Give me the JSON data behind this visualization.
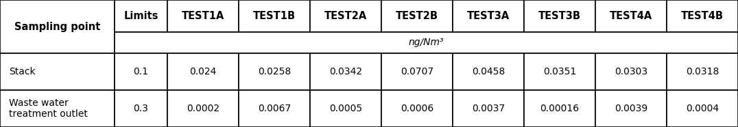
{
  "col_headers": [
    "Limits",
    "TEST1A",
    "TEST1B",
    "TEST2A",
    "TEST2B",
    "TEST3A",
    "TEST3B",
    "TEST4A",
    "TEST4B"
  ],
  "row_header_label": "Sampling point",
  "unit_label": "ng/Nm³",
  "rows": [
    {
      "label": "Stack",
      "values": [
        "0.1",
        "0.024",
        "0.0258",
        "0.0342",
        "0.0707",
        "0.0458",
        "0.0351",
        "0.0303",
        "0.0318"
      ]
    },
    {
      "label": "Waste water\ntreatment outlet",
      "values": [
        "0.3",
        "0.0002",
        "0.0067",
        "0.0005",
        "0.0006",
        "0.0037",
        "0.00016",
        "0.0039",
        "0.0004"
      ]
    }
  ],
  "background_color": "#ffffff",
  "header_bg_color": "#ffffff",
  "border_color": "#000000",
  "text_color": "#000000",
  "font_size": 10,
  "header_font_size": 10.5
}
